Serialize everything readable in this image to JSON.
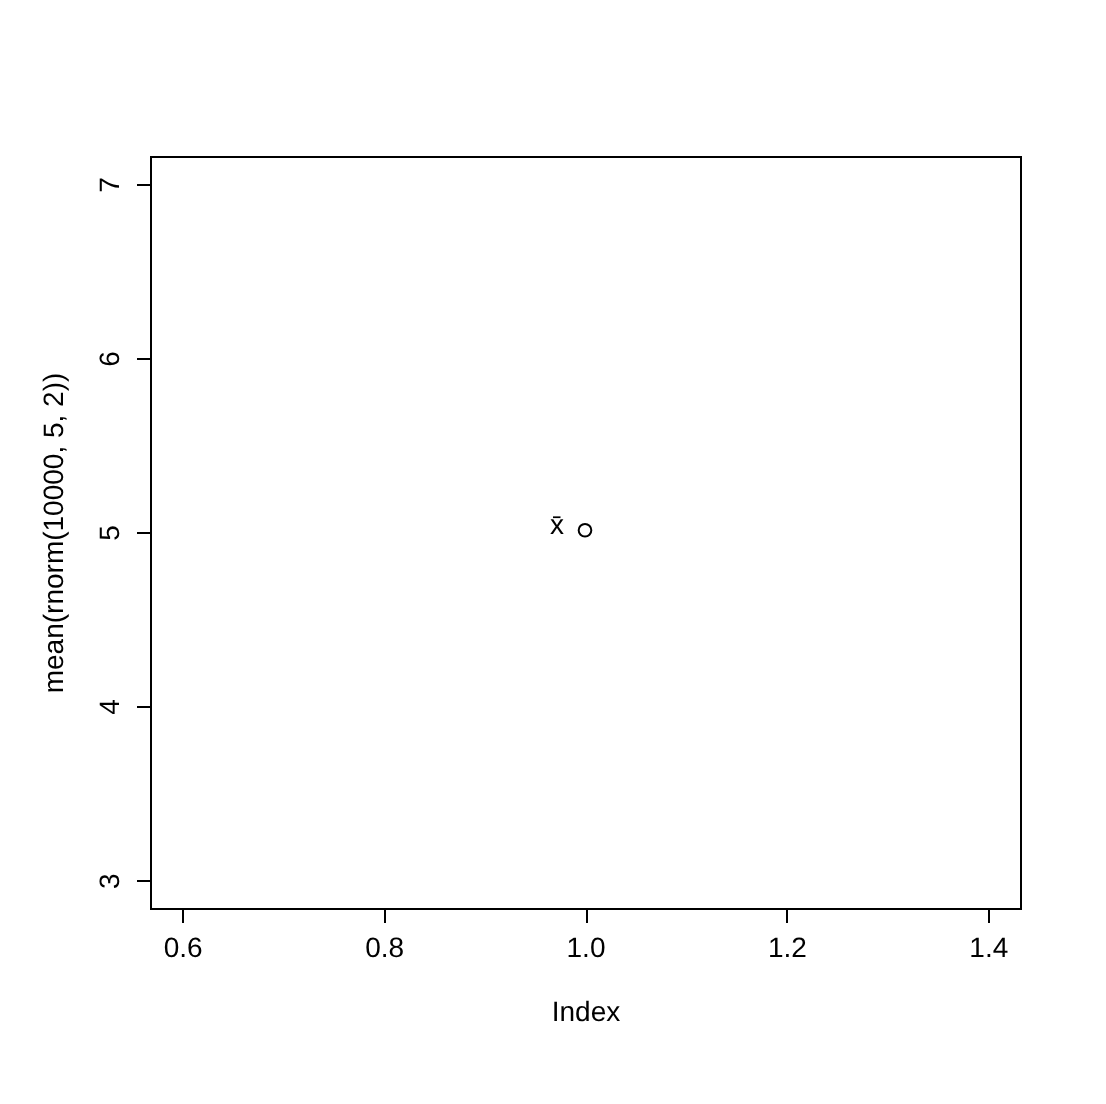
{
  "chart_data": {
    "type": "scatter",
    "xlabel": "Index",
    "ylabel": "mean(rnorm(10000, 5, 2))",
    "x": [
      1.0
    ],
    "series": [
      {
        "color": "#000000",
        "values": [
          5.01
        ]
      }
    ],
    "marker": "circle",
    "annotations": [
      "x̄"
    ],
    "xlim": [
      0.568,
      1.432
    ],
    "xticks": [
      0.6,
      0.8,
      {
        "value": 1,
        "label": "1.0"
      },
      1.2,
      1.4
    ],
    "ylim": [
      2.84,
      7.16
    ],
    "yticks": [
      3,
      4,
      5,
      6,
      7
    ]
  }
}
